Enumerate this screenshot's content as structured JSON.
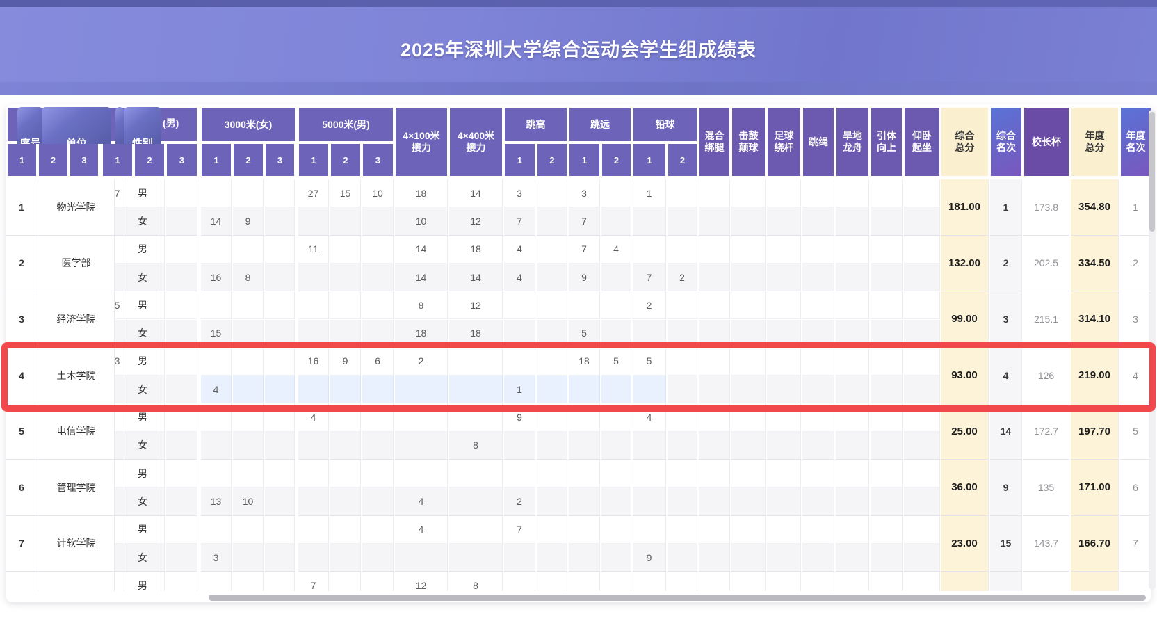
{
  "title": "2025年深圳大学综合运动会学生组成绩表",
  "colors": {
    "banner": "#7b80d4",
    "header_purple": "#6d64ba",
    "header_deep_purple": "#6c59b0",
    "principal_cup_purple": "#6a4ca6",
    "rank_chip_gradient": [
      "#5a73d8",
      "#7a57bf"
    ],
    "cream_column": "#faefcf",
    "cream_body": "#fdf3d8",
    "highlight_red": "#f1484b",
    "selected_row_blue": "#e8f1fd",
    "female_row_gray": "#f5f5f7",
    "scrollbar_gray": "#b9b9bf"
  },
  "table": {
    "sticky_headers": {
      "seq": "序号",
      "unit": "单位",
      "gender": "性别"
    },
    "group_headers": {
      "groupB": "(男)",
      "c3000": "3000米(女)",
      "d5000": "5000米(男)",
      "relay100": [
        "4×100米",
        "接力"
      ],
      "relay400": [
        "4×400米",
        "接力"
      ],
      "high_jump": "跳高",
      "long_jump": "跳远",
      "shot_put": "铅球",
      "mixed_leg": [
        "混合",
        "绑腿"
      ],
      "drum_ball": [
        "击鼓",
        "颠球"
      ],
      "soccer_dribble": [
        "足球",
        "绕杆"
      ],
      "rope_skip": [
        "跳绳"
      ],
      "land_dragon": [
        "旱地",
        "龙舟"
      ],
      "pull_up": [
        "引体",
        "向上"
      ],
      "sit_up": [
        "仰卧",
        "起坐"
      ],
      "total": [
        "综合",
        "总分"
      ],
      "total_rank": [
        "综合",
        "名次"
      ],
      "principal_cup": [
        "校长杯"
      ],
      "annual_total": [
        "年度",
        "总分"
      ],
      "annual_rank": [
        "年度",
        "名次"
      ]
    },
    "sub_header_numbers": [
      "1",
      "2",
      "3"
    ],
    "gender_labels": {
      "male": "男",
      "female": "女"
    },
    "rows": [
      {
        "seq": "1",
        "unit": "物光学院",
        "male": {
          "b1": "7",
          "d1": "27",
          "d2": "15",
          "d3": "10",
          "r100": "18",
          "r400": "14",
          "tg1": "3",
          "ty1": "3",
          "qq1": "1"
        },
        "female": {
          "c1": "14",
          "c2": "9",
          "r100": "10",
          "r400": "12",
          "tg1": "7",
          "ty1": "7"
        },
        "total": "181.00",
        "rank": "1",
        "cup": "173.8",
        "annual": "354.80",
        "annual_rank": "1"
      },
      {
        "seq": "2",
        "unit": "医学部",
        "male": {
          "d1": "11",
          "r100": "14",
          "r400": "18",
          "tg1": "4",
          "ty1": "7",
          "ty2": "4"
        },
        "female": {
          "c1": "16",
          "c2": "8",
          "r100": "14",
          "r400": "14",
          "tg1": "4",
          "ty1": "9",
          "qq1": "7",
          "qq2": "2"
        },
        "total": "132.00",
        "rank": "2",
        "cup": "202.5",
        "annual": "334.50",
        "annual_rank": "2"
      },
      {
        "seq": "3",
        "unit": "经济学院",
        "male": {
          "b1": "5",
          "r100": "8",
          "r400": "12",
          "qq1": "2"
        },
        "female": {
          "c1": "15",
          "r100": "18",
          "r400": "18",
          "ty1": "5"
        },
        "total": "99.00",
        "rank": "3",
        "cup": "215.1",
        "annual": "314.10",
        "annual_rank": "3"
      },
      {
        "seq": "4",
        "unit": "土木学院",
        "highlighted": true,
        "female_selected": true,
        "male": {
          "b1": "3",
          "d1": "16",
          "d2": "9",
          "d3": "6",
          "r100": "2",
          "ty1": "18",
          "ty2": "5",
          "qq1": "5"
        },
        "female": {
          "c1": "4",
          "tg1": "1"
        },
        "total": "93.00",
        "rank": "4",
        "cup": "126",
        "annual": "219.00",
        "annual_rank": "4"
      },
      {
        "seq": "5",
        "unit": "电信学院",
        "male": {
          "d1": "4",
          "tg1": "9",
          "qq1": "4"
        },
        "female": {
          "r400": "8"
        },
        "total": "25.00",
        "rank": "14",
        "cup": "172.7",
        "annual": "197.70",
        "annual_rank": "5"
      },
      {
        "seq": "6",
        "unit": "管理学院",
        "male": {},
        "female": {
          "c1": "13",
          "c2": "10",
          "r100": "4",
          "tg1": "2"
        },
        "total": "36.00",
        "rank": "9",
        "cup": "135",
        "annual": "171.00",
        "annual_rank": "6"
      },
      {
        "seq": "7",
        "unit": "计软学院",
        "male": {
          "r100": "4",
          "tg1": "7"
        },
        "female": {
          "c1": "3",
          "qq1": "9"
        },
        "total": "23.00",
        "rank": "15",
        "cup": "143.7",
        "annual": "166.70",
        "annual_rank": "7"
      },
      {
        "seq": "",
        "unit": "",
        "male": {
          "d1": "7",
          "r100": "12",
          "r400": "8"
        },
        "female": {},
        "total": "",
        "rank": "",
        "cup": "",
        "annual": "",
        "annual_rank": ""
      }
    ]
  }
}
